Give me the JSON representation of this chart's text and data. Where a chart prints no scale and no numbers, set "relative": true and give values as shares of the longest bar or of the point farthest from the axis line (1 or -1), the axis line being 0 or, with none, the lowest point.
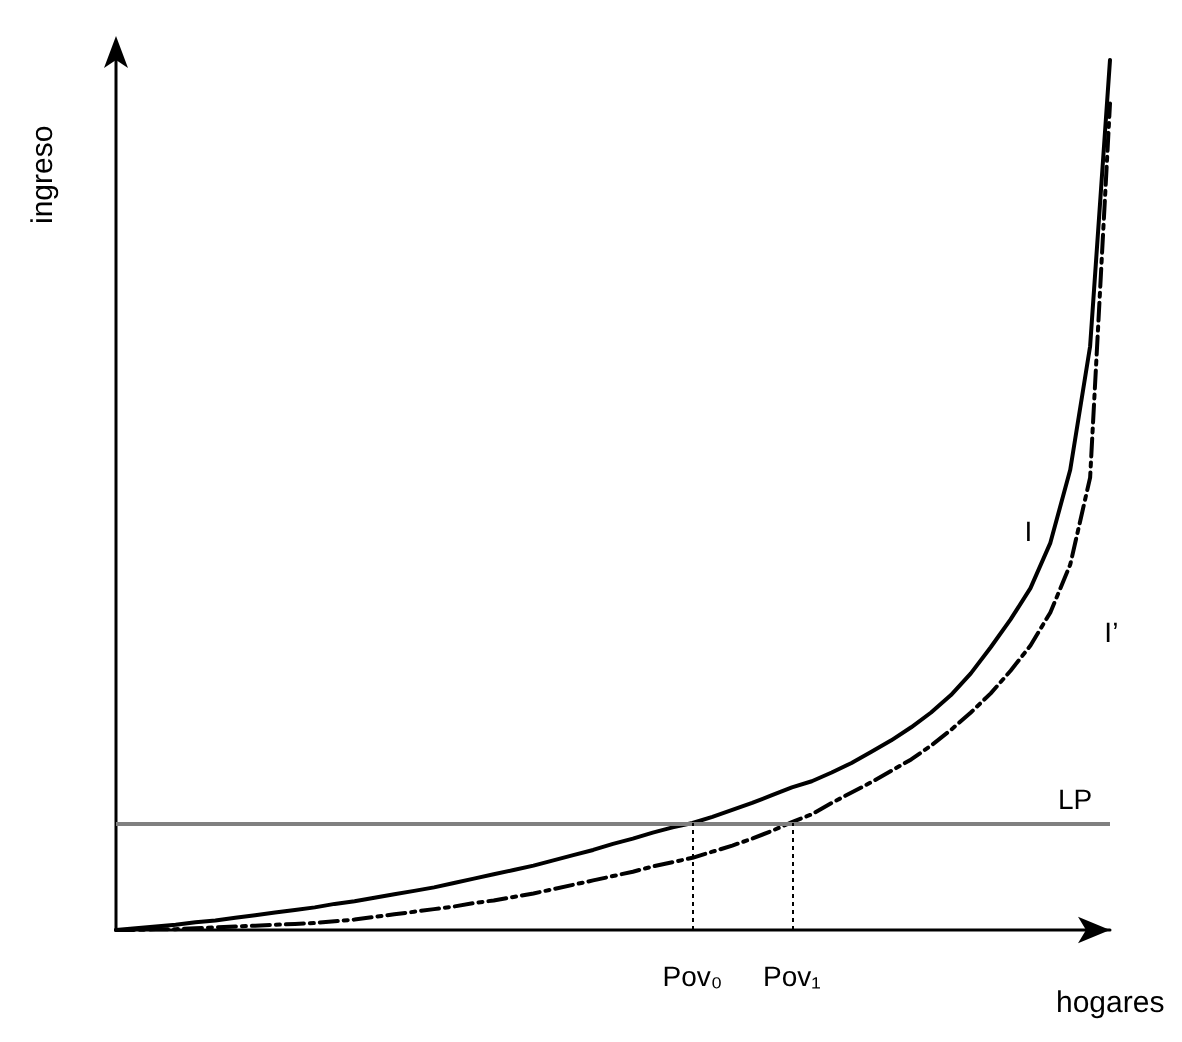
{
  "chart_data": {
    "type": "line",
    "relative": true,
    "legend": false,
    "grid": false,
    "marker": "none",
    "xlabel": "hogares",
    "ylabel": "ingreso",
    "categories": [
      null,
      null,
      null,
      null,
      null,
      null,
      null,
      null,
      null,
      null,
      null,
      null,
      null,
      null,
      null,
      null,
      null,
      null,
      null,
      null,
      null,
      null,
      null,
      null,
      null,
      null,
      null,
      null,
      null,
      "Pov₀",
      null,
      null,
      null,
      null,
      "Pov₁",
      null,
      null,
      null,
      null,
      null,
      null,
      null,
      null,
      null,
      null,
      null,
      null,
      null,
      null,
      null,
      null
    ],
    "series": [
      {
        "name": "I",
        "color": "#000000",
        "line_style": "solid",
        "values": [
          0,
          0.002,
          0.004,
          0.006,
          0.009,
          0.011,
          0.014,
          0.017,
          0.02,
          0.023,
          0.026,
          0.03,
          0.033,
          0.037,
          0.041,
          0.045,
          0.049,
          0.054,
          0.059,
          0.064,
          0.069,
          0.074,
          0.08,
          0.086,
          0.092,
          0.099,
          0.105,
          0.112,
          0.118,
          0.123,
          0.13,
          0.138,
          0.146,
          0.155,
          0.164,
          0.171,
          0.181,
          0.192,
          0.205,
          0.218,
          0.233,
          0.25,
          0.27,
          0.295,
          0.325,
          0.357,
          0.393,
          0.445,
          0.529,
          0.671,
          1.0
        ]
      },
      {
        "name": "I’",
        "color": "#000000",
        "line_style": "dashed",
        "values": [
          0,
          0,
          0.001,
          0.001,
          0.002,
          0.003,
          0.004,
          0.005,
          0.006,
          0.007,
          0.008,
          0.01,
          0.012,
          0.015,
          0.018,
          0.021,
          0.024,
          0.027,
          0.031,
          0.034,
          0.038,
          0.042,
          0.047,
          0.052,
          0.057,
          0.062,
          0.067,
          0.073,
          0.078,
          0.083,
          0.09,
          0.097,
          0.105,
          0.114,
          0.124,
          0.133,
          0.146,
          0.158,
          0.17,
          0.183,
          0.196,
          0.212,
          0.23,
          0.25,
          0.272,
          0.298,
          0.327,
          0.365,
          0.42,
          0.52,
          0.95
        ]
      }
    ],
    "ref_lines": [
      {
        "axis": "y",
        "value": 0.123,
        "label": "LP",
        "color": "#808080",
        "line_style": "solid"
      },
      {
        "axis": "x",
        "value": "Pov₀",
        "color": "#000000",
        "line_style": "dotted"
      },
      {
        "axis": "x",
        "value": "Pov₁",
        "color": "#000000",
        "line_style": "dotted"
      }
    ]
  }
}
